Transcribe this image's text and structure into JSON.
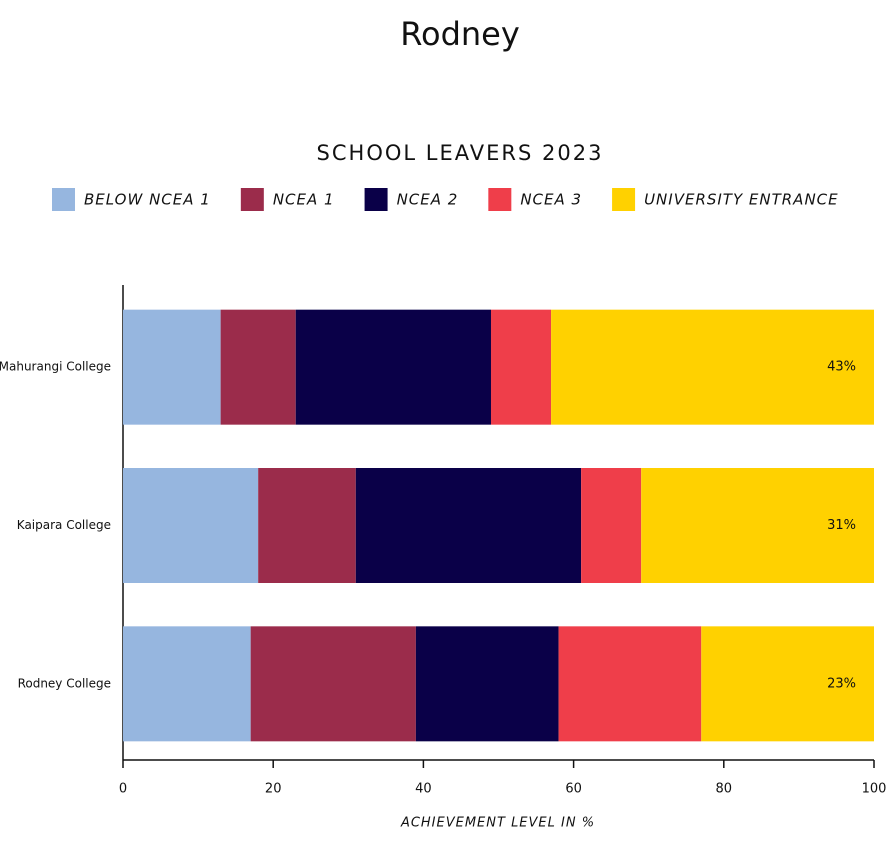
{
  "chart_data": {
    "type": "stacked_bar_horizontal",
    "title": "Rodney",
    "subtitle": "SCHOOL LEAVERS 2023",
    "x_label": "ACHIEVEMENT LEVEL IN %",
    "categories": [
      "Mahurangi College",
      "Kaipara College",
      "Rodney College"
    ],
    "series": [
      {
        "name": "BELOW NCEA 1",
        "color": "#96b6df",
        "values": [
          13,
          18,
          17
        ]
      },
      {
        "name": "NCEA 1",
        "color": "#9b2c4b",
        "values": [
          10,
          13,
          22
        ]
      },
      {
        "name": "NCEA 2",
        "color": "#0a0048",
        "values": [
          26,
          30,
          19
        ]
      },
      {
        "name": "NCEA 3",
        "color": "#ef3e4a",
        "values": [
          8,
          8,
          19
        ]
      },
      {
        "name": "UNIVERSITY ENTRANCE",
        "color": "#ffd100",
        "values": [
          43,
          31,
          23
        ],
        "value_labels": [
          "43%",
          "31%",
          "23%"
        ]
      }
    ],
    "xlim": [
      0,
      100
    ],
    "xticks": [
      0,
      20,
      40,
      60,
      80,
      100
    ],
    "legend": "top"
  }
}
